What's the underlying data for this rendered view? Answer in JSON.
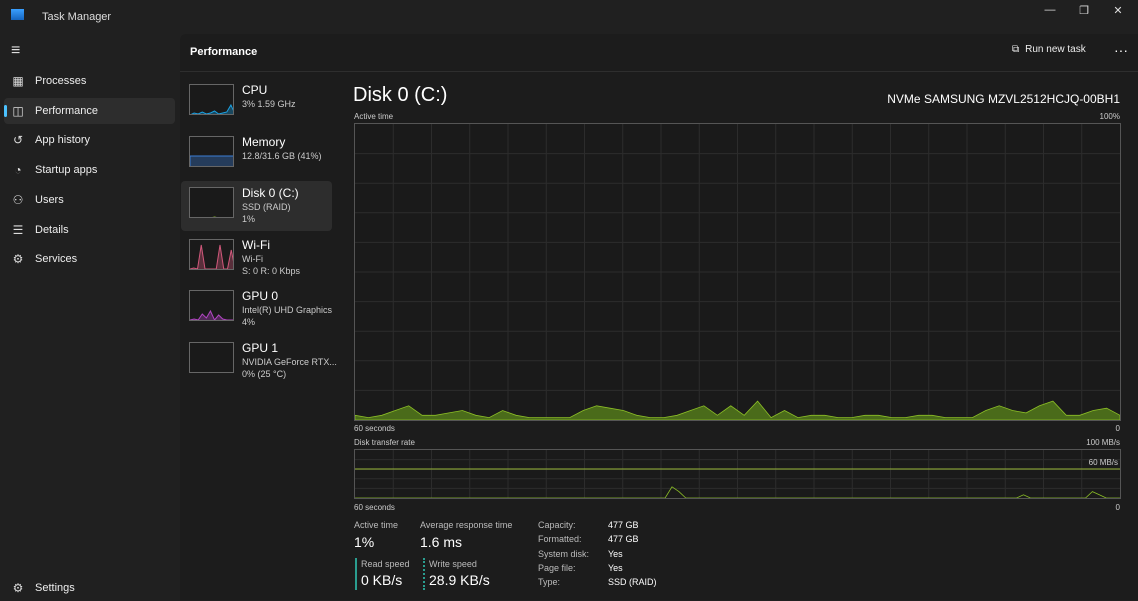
{
  "app": {
    "title": "Task Manager",
    "minimize": "—",
    "restore": "❐",
    "close": "✕"
  },
  "nav": {
    "menu": "≡",
    "items": [
      {
        "label": "Processes",
        "icon": "processes-icon",
        "glyph": "▦"
      },
      {
        "label": "Performance",
        "icon": "performance-icon",
        "glyph": "◫"
      },
      {
        "label": "App history",
        "icon": "history-icon",
        "glyph": "↺"
      },
      {
        "label": "Startup apps",
        "icon": "speedometer-icon",
        "glyph": "◔"
      },
      {
        "label": "Users",
        "icon": "users-icon",
        "glyph": "⚇"
      },
      {
        "label": "Details",
        "icon": "details-icon",
        "glyph": "☰"
      },
      {
        "label": "Services",
        "icon": "services-icon",
        "glyph": "⚙"
      }
    ],
    "settings": {
      "label": "Settings",
      "glyph": "⚙"
    }
  },
  "header": {
    "title": "Performance",
    "run_new_task": "Run new task",
    "more": "···"
  },
  "resources": [
    {
      "name": "CPU",
      "line1": "3% 1.59 GHz",
      "line2": "",
      "color": "#1ba1e2"
    },
    {
      "name": "Memory",
      "line1": "12.8/31.6 GB (41%)",
      "line2": "",
      "color": "#3c7ed6"
    },
    {
      "name": "Disk 0 (C:)",
      "line1": "SSD (RAID)",
      "line2": "1%",
      "color": "#8cbf26"
    },
    {
      "name": "Wi-Fi",
      "line1": "Wi-Fi",
      "line2": "S: 0 R: 0 Kbps",
      "color": "#d0587b"
    },
    {
      "name": "GPU 0",
      "line1": "Intel(R) UHD Graphics",
      "line2": "4%",
      "color": "#b146c2"
    },
    {
      "name": "GPU 1",
      "line1": "NVIDIA GeForce RTX...",
      "line2": "0% (25 °C)",
      "color": "#666666"
    }
  ],
  "detail": {
    "title": "Disk 0 (C:)",
    "model": "NVMe SAMSUNG MZVL2512HCJQ-00BH1"
  },
  "chart_data": [
    {
      "type": "area",
      "title": "Active time",
      "ymax_label": "100%",
      "x_left": "60 seconds",
      "x_right": "0",
      "ylim": [
        0,
        100
      ],
      "color": "#8cbf26",
      "values": [
        1,
        0.5,
        1,
        2,
        3,
        1,
        1,
        1.5,
        2,
        1,
        0.5,
        2,
        1,
        0.5,
        0.5,
        0.5,
        0.5,
        2,
        3,
        2.5,
        2,
        1,
        0.5,
        0.5,
        1,
        2,
        3,
        1,
        3,
        1,
        4,
        0.5,
        2,
        0.5,
        1,
        1,
        0.5,
        0.5,
        1,
        1,
        0.5,
        0.5,
        1,
        1,
        0.5,
        0.5,
        0.5,
        2,
        3,
        2,
        1.5,
        3,
        4,
        1,
        1,
        2,
        2.5,
        1
      ]
    },
    {
      "type": "line",
      "title": "Disk transfer rate",
      "ymax_label": "100 MB/s",
      "scale_label": "60 MB/s",
      "x_left": "60 seconds",
      "x_right": "0",
      "ylim": [
        0,
        60
      ],
      "color": "#8cbf26",
      "values": [
        0,
        0,
        0,
        0,
        0,
        0,
        0,
        0,
        0,
        0,
        0,
        0,
        0,
        0,
        0,
        0,
        0,
        0,
        0,
        0,
        0,
        0,
        0,
        0,
        0,
        0,
        0,
        0,
        0,
        0,
        0,
        0,
        0,
        0,
        0,
        0,
        0,
        0,
        0,
        0,
        0,
        0,
        0,
        0,
        0,
        0,
        3.5,
        2,
        0,
        0,
        0,
        0,
        0,
        0,
        0,
        0,
        0,
        0,
        0,
        0,
        0,
        0,
        0,
        0,
        0,
        0,
        0,
        0,
        0,
        0,
        0,
        0,
        0,
        0,
        0,
        0,
        0,
        0,
        0,
        0,
        0,
        0,
        0,
        0,
        0,
        0,
        0,
        0,
        0,
        0,
        0,
        0,
        0,
        0,
        0,
        0,
        0,
        1,
        0,
        0,
        0,
        0,
        0,
        0,
        0,
        0,
        0,
        2,
        1,
        0,
        0,
        0
      ]
    }
  ],
  "stats": {
    "active_time_label": "Active time",
    "active_time": "1%",
    "avg_resp_label": "Average response time",
    "avg_resp": "1.6 ms",
    "read_label": "Read speed",
    "read": "0 KB/s",
    "write_label": "Write speed",
    "write": "28.9 KB/s",
    "props": [
      {
        "k": "Capacity:",
        "v": "477 GB"
      },
      {
        "k": "Formatted:",
        "v": "477 GB"
      },
      {
        "k": "System disk:",
        "v": "Yes"
      },
      {
        "k": "Page file:",
        "v": "Yes"
      },
      {
        "k": "Type:",
        "v": "SSD (RAID)"
      }
    ]
  }
}
